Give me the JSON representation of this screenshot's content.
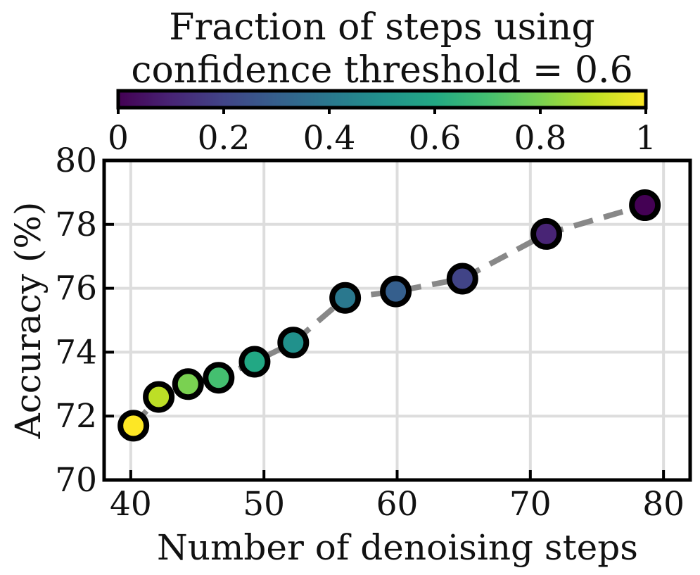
{
  "chart_data": {
    "type": "scatter",
    "xlabel": "Number of denoising steps",
    "ylabel": "Accuracy (%)",
    "xlim": [
      38,
      82
    ],
    "ylim": [
      70,
      80
    ],
    "xticks": [
      "40",
      "50",
      "60",
      "70",
      "80"
    ],
    "yticks": [
      "70",
      "72",
      "74",
      "76",
      "78",
      "80"
    ],
    "grid": true,
    "connector_line": "dashed-gray",
    "colorbar": {
      "title": [
        "Fraction of steps using",
        "confidence threshold = 0.6"
      ],
      "colormap": "viridis",
      "range": [
        0,
        1
      ],
      "ticks": [
        "0",
        "0.2",
        "0.4",
        "0.6",
        "0.8",
        "1"
      ],
      "placement": "top"
    },
    "points": [
      {
        "x": 40.2,
        "y": 71.7,
        "fraction": 1.0
      },
      {
        "x": 42.1,
        "y": 72.6,
        "fraction": 0.9
      },
      {
        "x": 44.3,
        "y": 73.0,
        "fraction": 0.8
      },
      {
        "x": 46.6,
        "y": 73.2,
        "fraction": 0.7
      },
      {
        "x": 49.3,
        "y": 73.7,
        "fraction": 0.6
      },
      {
        "x": 52.2,
        "y": 74.3,
        "fraction": 0.5
      },
      {
        "x": 56.1,
        "y": 75.7,
        "fraction": 0.4
      },
      {
        "x": 59.9,
        "y": 75.9,
        "fraction": 0.3
      },
      {
        "x": 64.9,
        "y": 76.3,
        "fraction": 0.2
      },
      {
        "x": 71.2,
        "y": 77.7,
        "fraction": 0.1
      },
      {
        "x": 78.6,
        "y": 78.6,
        "fraction": 0.0
      }
    ]
  }
}
